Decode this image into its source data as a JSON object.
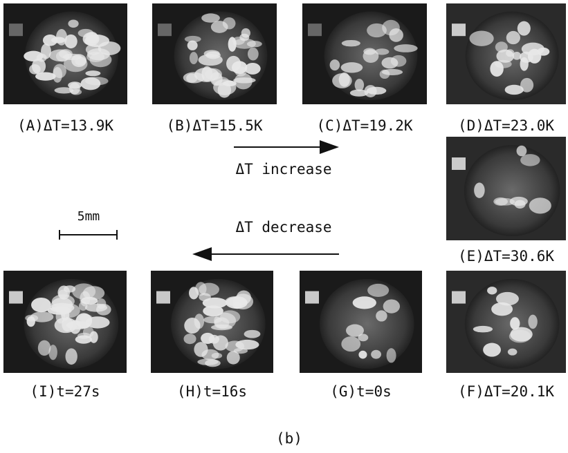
{
  "panels": [
    {
      "label": "(A)ΔT=13.9K"
    },
    {
      "label": "(B)ΔT=15.5K"
    },
    {
      "label": "(C)ΔT=19.2K"
    },
    {
      "label": "(D)ΔT=23.0K"
    },
    {
      "label": "(E)ΔT=30.6K"
    },
    {
      "label": "(F)ΔT=20.1K"
    },
    {
      "label": "(G)t=0s"
    },
    {
      "label": "(H)t=16s"
    },
    {
      "label": "(I)t=27s"
    }
  ],
  "annotations": {
    "increase": "ΔT increase",
    "decrease": "ΔT decrease",
    "scale": "5mm"
  },
  "caption": "(b)"
}
